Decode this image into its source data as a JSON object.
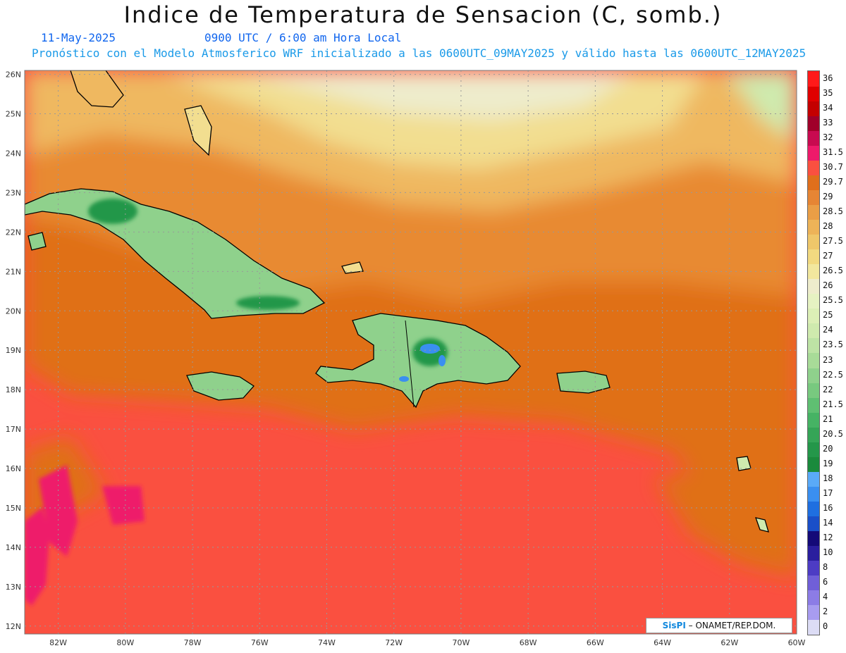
{
  "title": "Indice de Temperatura de Sensacion (C, somb.)",
  "date": "11-May-2025",
  "time": "0900 UTC / 6:00 am Hora Local",
  "model_info": "Pronóstico con el Modelo Atmosferico WRF inicializado a las 0600UTC_09MAY2025 y válido hasta las  0600UTC_12MAY2025",
  "credit": {
    "logo": "SisPI",
    "text": "ONAMET/REP.DOM."
  },
  "lat_ticks": [
    "12N",
    "13N",
    "14N",
    "15N",
    "16N",
    "17N",
    "18N",
    "19N",
    "20N",
    "21N",
    "22N",
    "23N",
    "24N",
    "25N",
    "26N"
  ],
  "lon_ticks": [
    "82W",
    "80W",
    "78W",
    "76W",
    "74W",
    "72W",
    "70W",
    "68W",
    "66W",
    "64W",
    "62W",
    "60W"
  ],
  "colorbar": {
    "labels": [
      "0",
      "2",
      "4",
      "6",
      "8",
      "10",
      "12",
      "14",
      "16",
      "17",
      "18",
      "19",
      "20",
      "20.5",
      "21",
      "21.5",
      "22",
      "22.5",
      "23",
      "23.5",
      "24",
      "25",
      "25.5",
      "26",
      "26.5",
      "27",
      "27.5",
      "28",
      "28.5",
      "29",
      "29.7",
      "30.7",
      "31.5",
      "32",
      "33",
      "34",
      "35",
      "36"
    ],
    "colors": [
      "#dcdcf5",
      "#a89cf0",
      "#8c7ce6",
      "#705fd8",
      "#4d3cc4",
      "#2a1e9e",
      "#140a78",
      "#1a4fc8",
      "#1f6fe0",
      "#3a8ff0",
      "#5aaaf8",
      "#1a8a3c",
      "#24974a",
      "#35a557",
      "#46b364",
      "#5fbf72",
      "#78c97f",
      "#8fd18c",
      "#a8db98",
      "#bde3a5",
      "#cfeaae",
      "#dcefb6",
      "#e6f2c2",
      "#eeeccc",
      "#f2e79e",
      "#f2d980",
      "#efc76a",
      "#edb358",
      "#ea9e46",
      "#e68534",
      "#e06f1c",
      "#fa5040",
      "#ee1a6a",
      "#c80a50",
      "#a0002a",
      "#c40000",
      "#e00000",
      "#ff1a1a"
    ]
  }
}
